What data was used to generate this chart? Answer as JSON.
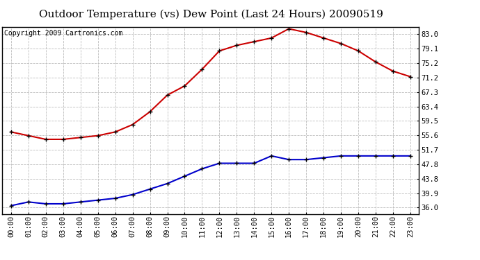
{
  "title": "Outdoor Temperature (vs) Dew Point (Last 24 Hours) 20090519",
  "copyright": "Copyright 2009 Cartronics.com",
  "x_labels": [
    "00:00",
    "01:00",
    "02:00",
    "03:00",
    "04:00",
    "05:00",
    "06:00",
    "07:00",
    "08:00",
    "09:00",
    "10:00",
    "11:00",
    "12:00",
    "13:00",
    "14:00",
    "15:00",
    "16:00",
    "17:00",
    "18:00",
    "19:00",
    "20:00",
    "21:00",
    "22:00",
    "23:00"
  ],
  "temp_data": [
    56.5,
    55.5,
    54.5,
    54.5,
    55.0,
    55.5,
    56.5,
    58.5,
    62.0,
    66.5,
    69.0,
    73.5,
    78.5,
    80.0,
    81.0,
    82.0,
    84.5,
    83.5,
    82.0,
    80.5,
    78.5,
    75.5,
    73.0,
    71.5
  ],
  "dew_data": [
    36.5,
    37.5,
    37.0,
    37.0,
    37.5,
    38.0,
    38.5,
    39.5,
    41.0,
    42.5,
    44.5,
    46.5,
    48.0,
    48.0,
    48.0,
    50.0,
    49.0,
    49.0,
    49.5,
    50.0,
    50.0,
    50.0,
    50.0,
    50.0
  ],
  "temp_color": "#cc0000",
  "dew_color": "#0000cc",
  "background_color": "#ffffff",
  "grid_color": "#bbbbbb",
  "yticks": [
    36.0,
    39.9,
    43.8,
    47.8,
    51.7,
    55.6,
    59.5,
    63.4,
    67.3,
    71.2,
    75.2,
    79.1,
    83.0
  ],
  "ymin": 34.1,
  "ymax": 84.9,
  "title_fontsize": 11,
  "copyright_fontsize": 7,
  "tick_fontsize": 7.5,
  "marker": "+",
  "marker_color": "#000000",
  "marker_size": 5,
  "linewidth": 1.5
}
